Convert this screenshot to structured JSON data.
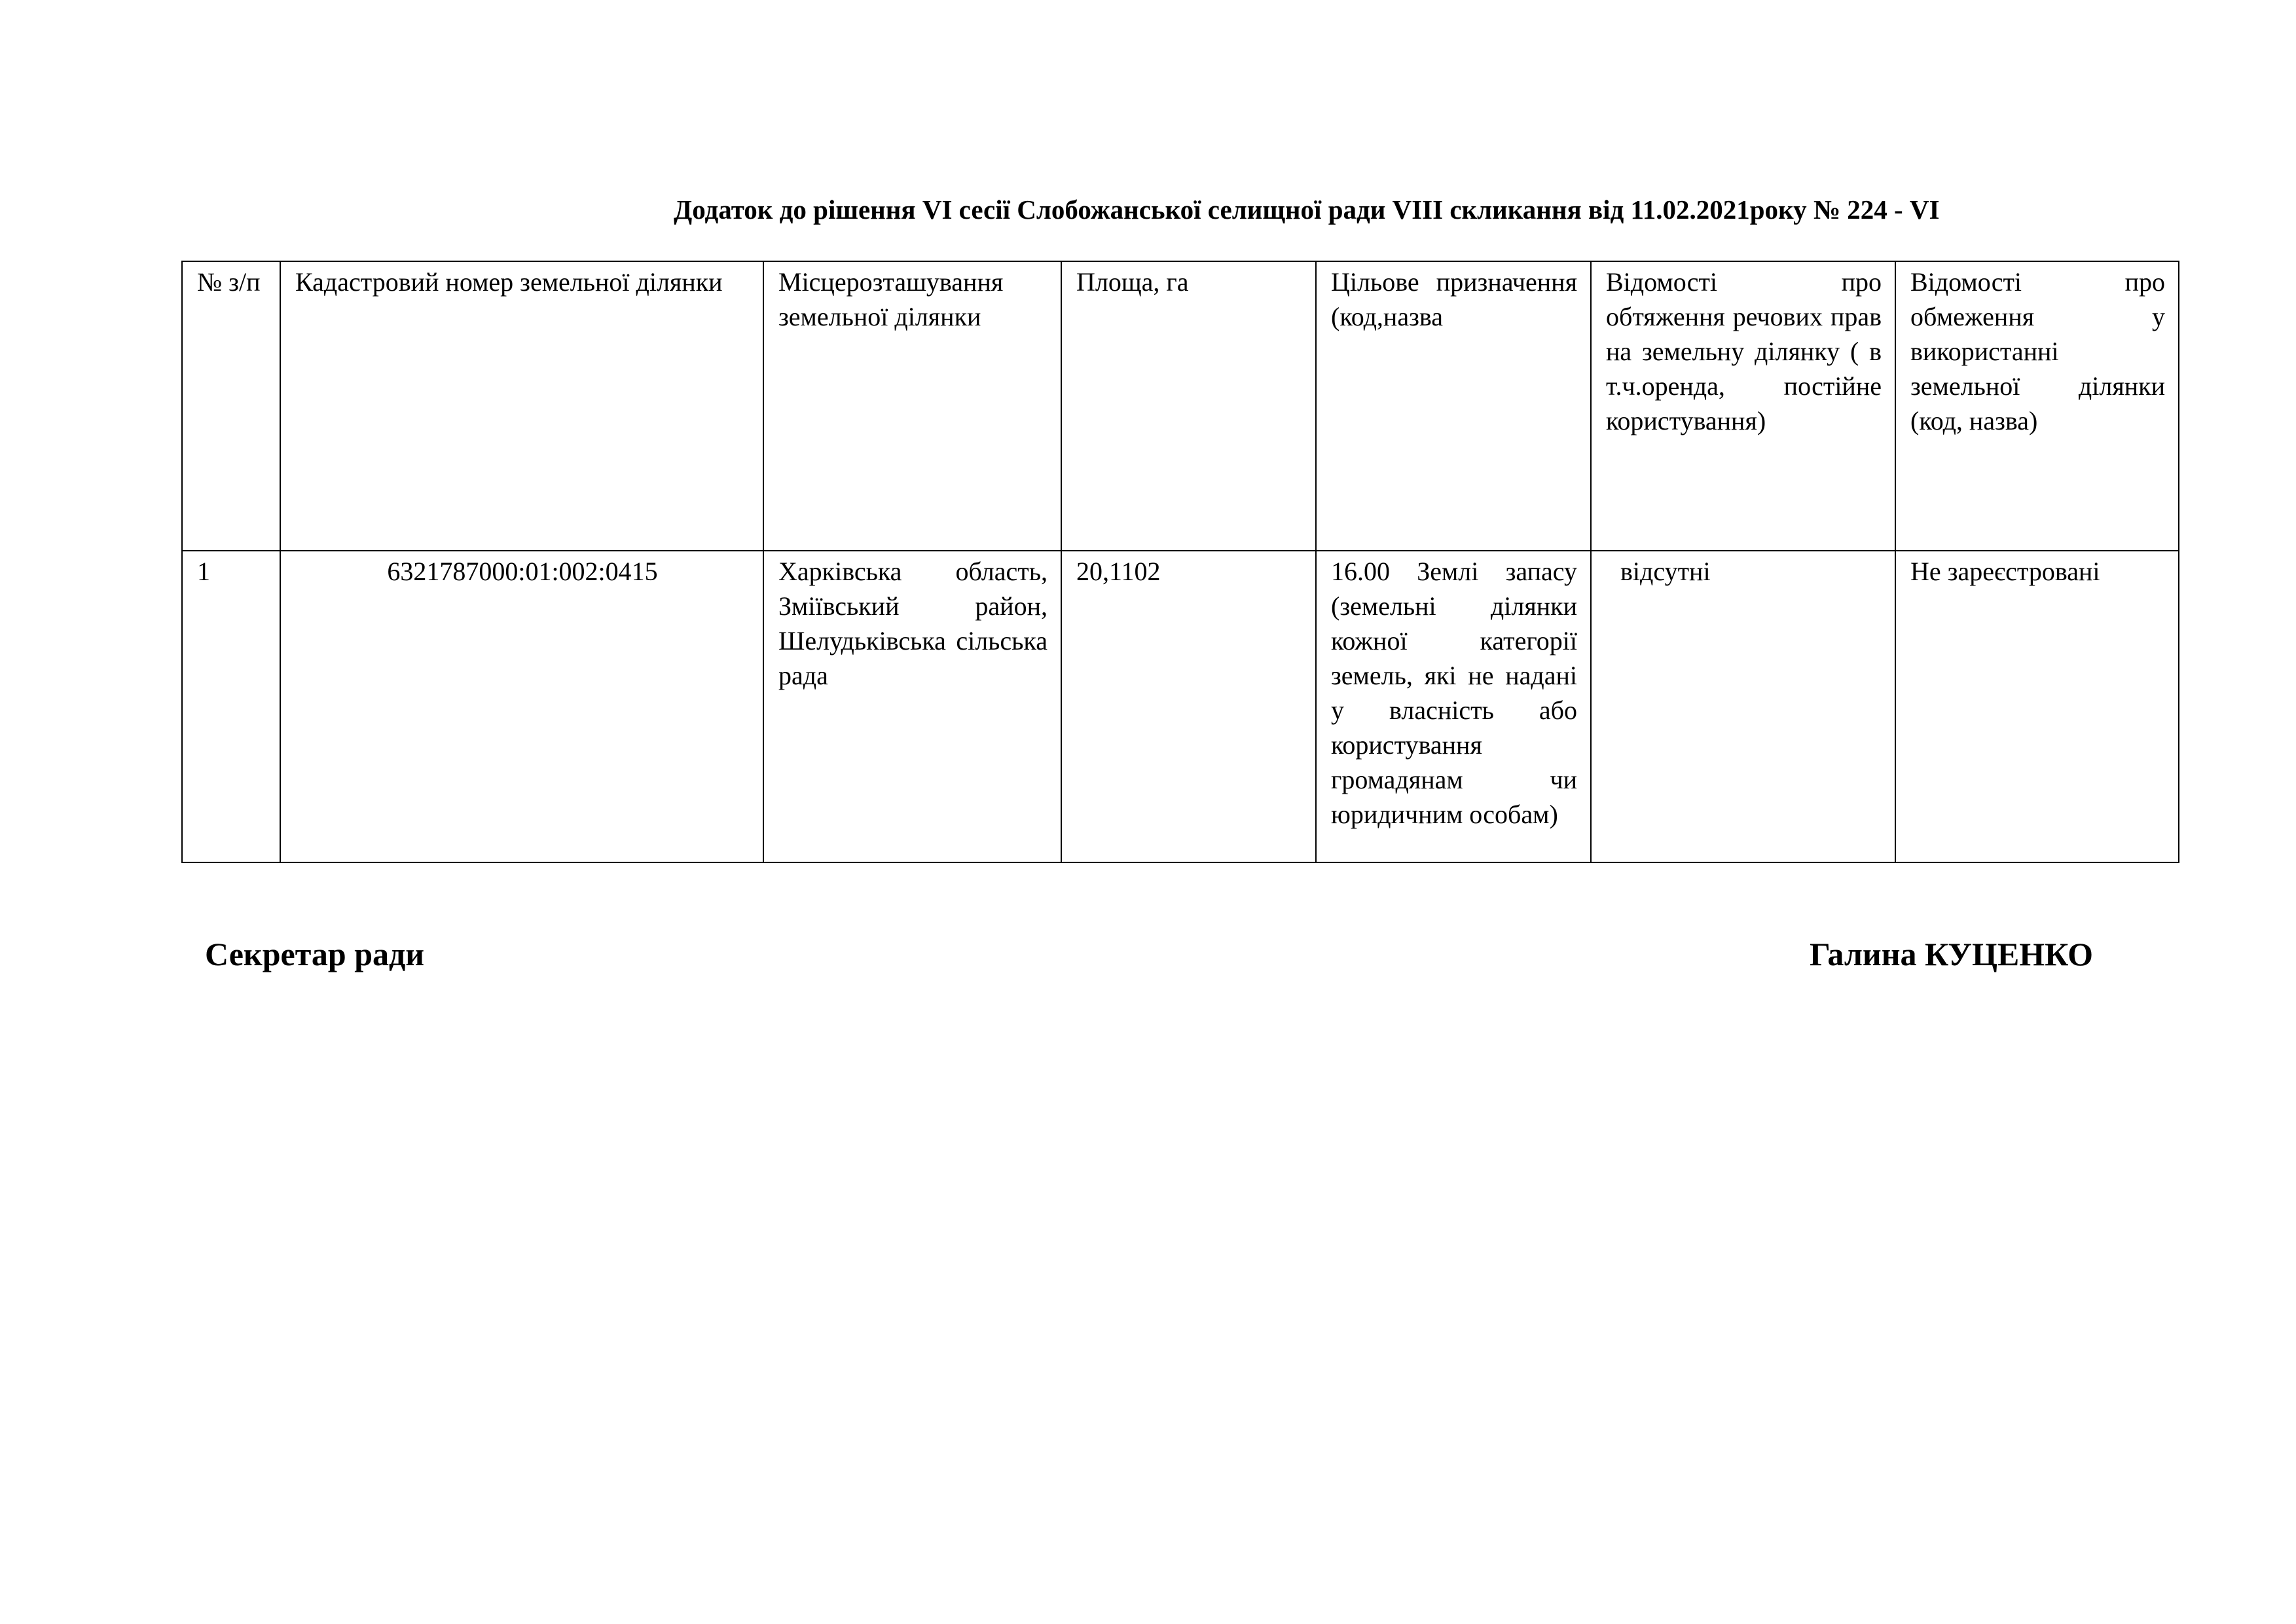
{
  "title": "Додаток до рішення VI сесії Слобожанської селищної ради  VIII скликання від 11.02.2021року № 224 - VI",
  "table": {
    "headers": [
      "№ з/п",
      "Кадастровий номер земельної ділянки",
      "Місцерозташування земельної ділянки",
      "Площа, га",
      "Цільове призначення (код,назва",
      "Відомості про обтяження речових прав на земельну ділянку ( в т.ч.оренда, постійне користування)",
      "Відомості про обмеження у використанні земельної ділянки (код, назва)"
    ],
    "rows": [
      {
        "number": "1",
        "cadastral": "6321787000:01:002:0415",
        "location": "Харківська область, Зміївський район, Шелудьківська сільська рада",
        "area": "20,1102",
        "purpose": "16.00 Землі запасу (земельні ділянки кожної категорії земель, які не надані у власність або користування громадянам чи юридичним особам)",
        "encumbrance": "відсутні",
        "restriction": "Не зареєстровані"
      }
    ]
  },
  "signature": {
    "position": "Секретар ради",
    "name": "Галина КУЦЕНКО"
  }
}
